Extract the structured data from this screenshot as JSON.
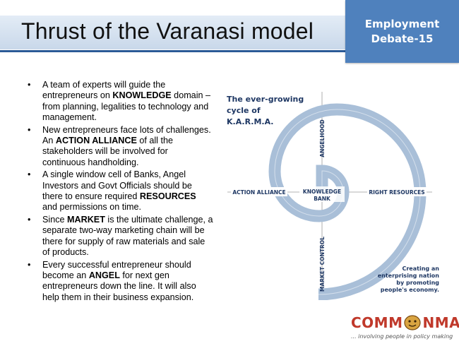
{
  "header": {
    "title": "Thrust of the Varanasi model",
    "badge_line1": "Employment",
    "badge_line2": "Debate-15"
  },
  "bullets": [
    "A team of experts will guide the entrepreneurs on KNOWLEDGE domain – from planning, legalities to technology and management.",
    "New entrepreneurs face lots of challenges. An ACTION ALLIANCE of all the stakeholders will be involved for continuous handholding.",
    "A single window cell of Banks, Angel Investors and Govt Officials should be there to ensure required RESOURCES and permissions on time.",
    "Since MARKET is the ultimate challenge, a separate two-way marketing chain will be there for supply of raw materials and sale of products.",
    "Every successful entrepreneur should become an ANGEL for next gen entrepreneurs down the line. It will also help them in their business expansion."
  ],
  "diagram": {
    "title_line1": "The ever-growing",
    "title_line2": "cycle of",
    "title_line3": "K.A.R.M.A.",
    "center_line1": "KNOWLEDGE",
    "center_line2": "BANK",
    "label_action": "ACTION ALLIANCE",
    "label_resources": "RIGHT RESOURCES",
    "label_angelhood": "ANGELHOOD",
    "label_market": "MARKET CONTROL",
    "tagline1": "Creating an",
    "tagline2": "enterprising nation",
    "tagline3": "by promoting",
    "tagline4": "people's economy.",
    "spiral_color": "#a9bfd8",
    "label_color": "#1f3864"
  },
  "logo": {
    "left": "COMM",
    "right": "NMAN",
    "tagline": "... involving people in policy making",
    "color": "#c0392b"
  }
}
